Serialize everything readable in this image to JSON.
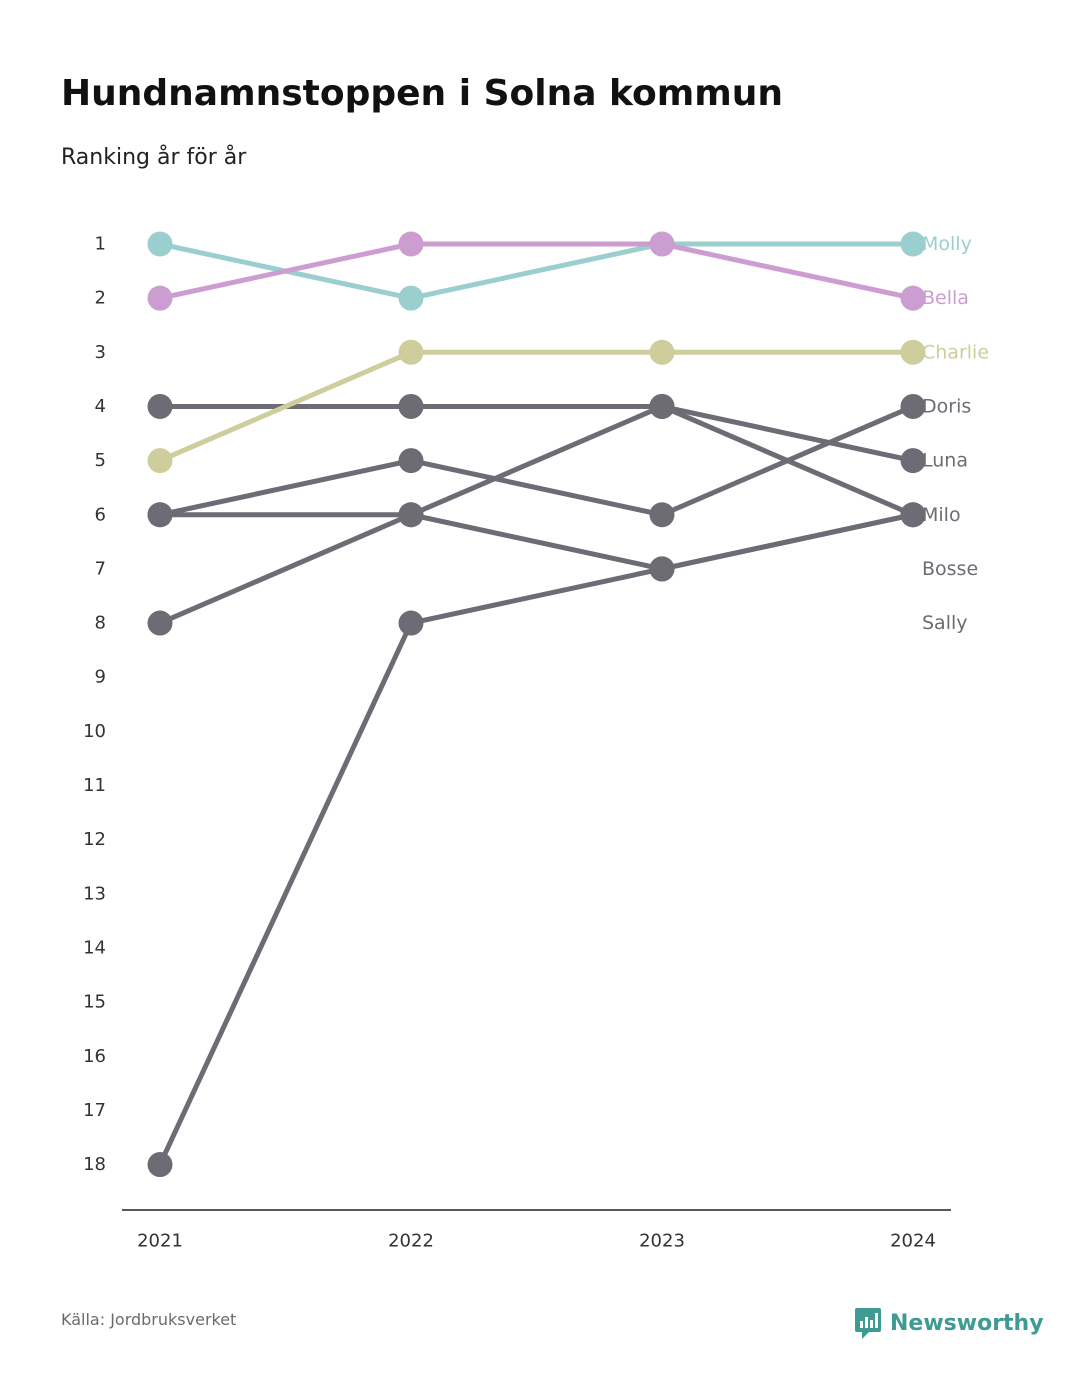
{
  "chart_data": {
    "type": "line",
    "title": "Hundnamnstoppen i Solna kommun",
    "subtitle": "Ranking år för år",
    "x": [
      "2021",
      "2022",
      "2023",
      "2024"
    ],
    "y_ticks": [
      "1",
      "2",
      "3",
      "4",
      "5",
      "6",
      "7",
      "8",
      "9",
      "10",
      "11",
      "12",
      "13",
      "14",
      "15",
      "16",
      "17",
      "18"
    ],
    "ylim": [
      1,
      18
    ],
    "y_reversed": true,
    "grid": false,
    "series": [
      {
        "name": "Molly",
        "color": "#9bcfcf",
        "values": [
          1,
          2,
          1,
          1
        ]
      },
      {
        "name": "Bella",
        "color": "#cc9dd0",
        "values": [
          2,
          1,
          1,
          2
        ]
      },
      {
        "name": "Charlie",
        "color": "#cdce9c",
        "values": [
          5,
          3,
          3,
          3
        ]
      },
      {
        "name": "Doris",
        "color": "#6d6b73",
        "values": [
          8,
          6,
          4,
          6
        ]
      },
      {
        "name": "Luna",
        "color": "#6d6b73",
        "values": [
          4,
          4,
          4,
          5
        ]
      },
      {
        "name": "Milo",
        "color": "#6d6b73",
        "values": [
          18,
          8,
          7,
          6
        ]
      },
      {
        "name": "Bosse",
        "color": "#6d6b73",
        "values": [
          6,
          5,
          6,
          4
        ]
      },
      {
        "name": "Sally",
        "color": "#6d6b73",
        "values": [
          6,
          6,
          7,
          6
        ]
      }
    ],
    "label_ranks": [
      1,
      2,
      3,
      4,
      5,
      6,
      7,
      8
    ]
  },
  "footer": {
    "source": "Källa: Jordbruksverket",
    "brand": "Newsworthy",
    "brand_color": "#3e9b93"
  }
}
